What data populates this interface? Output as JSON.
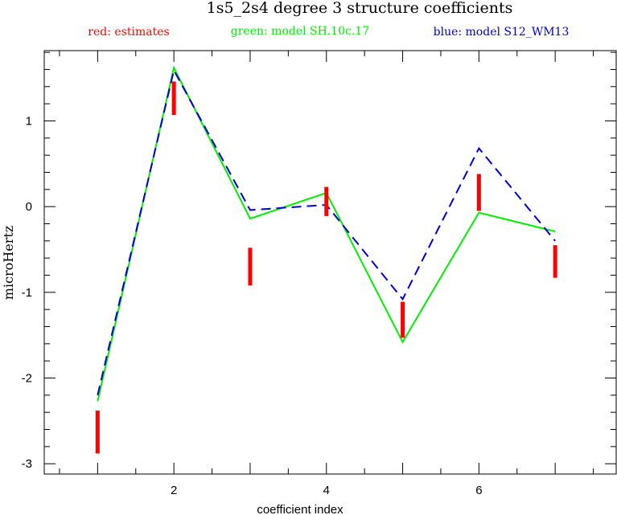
{
  "chart_data": {
    "type": "line",
    "title": "1s5_2s4 degree 3 structure coefficients",
    "xlabel": "coefficient index",
    "ylabel": "microHertz",
    "xlim": [
      0.3,
      7.8
    ],
    "ylim": [
      -3.12,
      1.82
    ],
    "x_ticks": [
      2,
      4,
      6
    ],
    "y_ticks": [
      -3,
      -2,
      -1,
      0,
      1
    ],
    "legend": [
      {
        "label": "red: estimates",
        "color": "#ff0000"
      },
      {
        "label": "green: model SH.10c.17",
        "color": "#00ee00"
      },
      {
        "label": "blue: model S12_WM13",
        "color": "#0000cc"
      }
    ],
    "estimates": {
      "name": "estimates",
      "color": "#ff0000",
      "ranges": [
        {
          "x": 1,
          "low": -2.88,
          "high": -2.38
        },
        {
          "x": 2,
          "low": 1.07,
          "high": 1.46
        },
        {
          "x": 3,
          "low": -0.92,
          "high": -0.48
        },
        {
          "x": 4,
          "low": -0.11,
          "high": 0.23
        },
        {
          "x": 5,
          "low": -1.53,
          "high": -1.11
        },
        {
          "x": 6,
          "low": -0.05,
          "high": 0.38
        },
        {
          "x": 7,
          "low": -0.83,
          "high": -0.45
        }
      ]
    },
    "series": [
      {
        "name": "model SH.10c.17",
        "color": "#00ee00",
        "dash": "solid",
        "x": [
          1,
          2,
          3,
          4,
          5,
          6,
          7
        ],
        "values": [
          -2.27,
          1.62,
          -0.14,
          0.16,
          -1.58,
          -0.07,
          -0.29
        ]
      },
      {
        "name": "model S12_WM13",
        "color": "#0000cc",
        "dash": "dashed",
        "x": [
          1,
          2,
          3,
          4,
          5,
          6,
          7
        ],
        "values": [
          -2.2,
          1.59,
          -0.04,
          0.02,
          -1.08,
          0.68,
          -0.4
        ]
      }
    ]
  }
}
